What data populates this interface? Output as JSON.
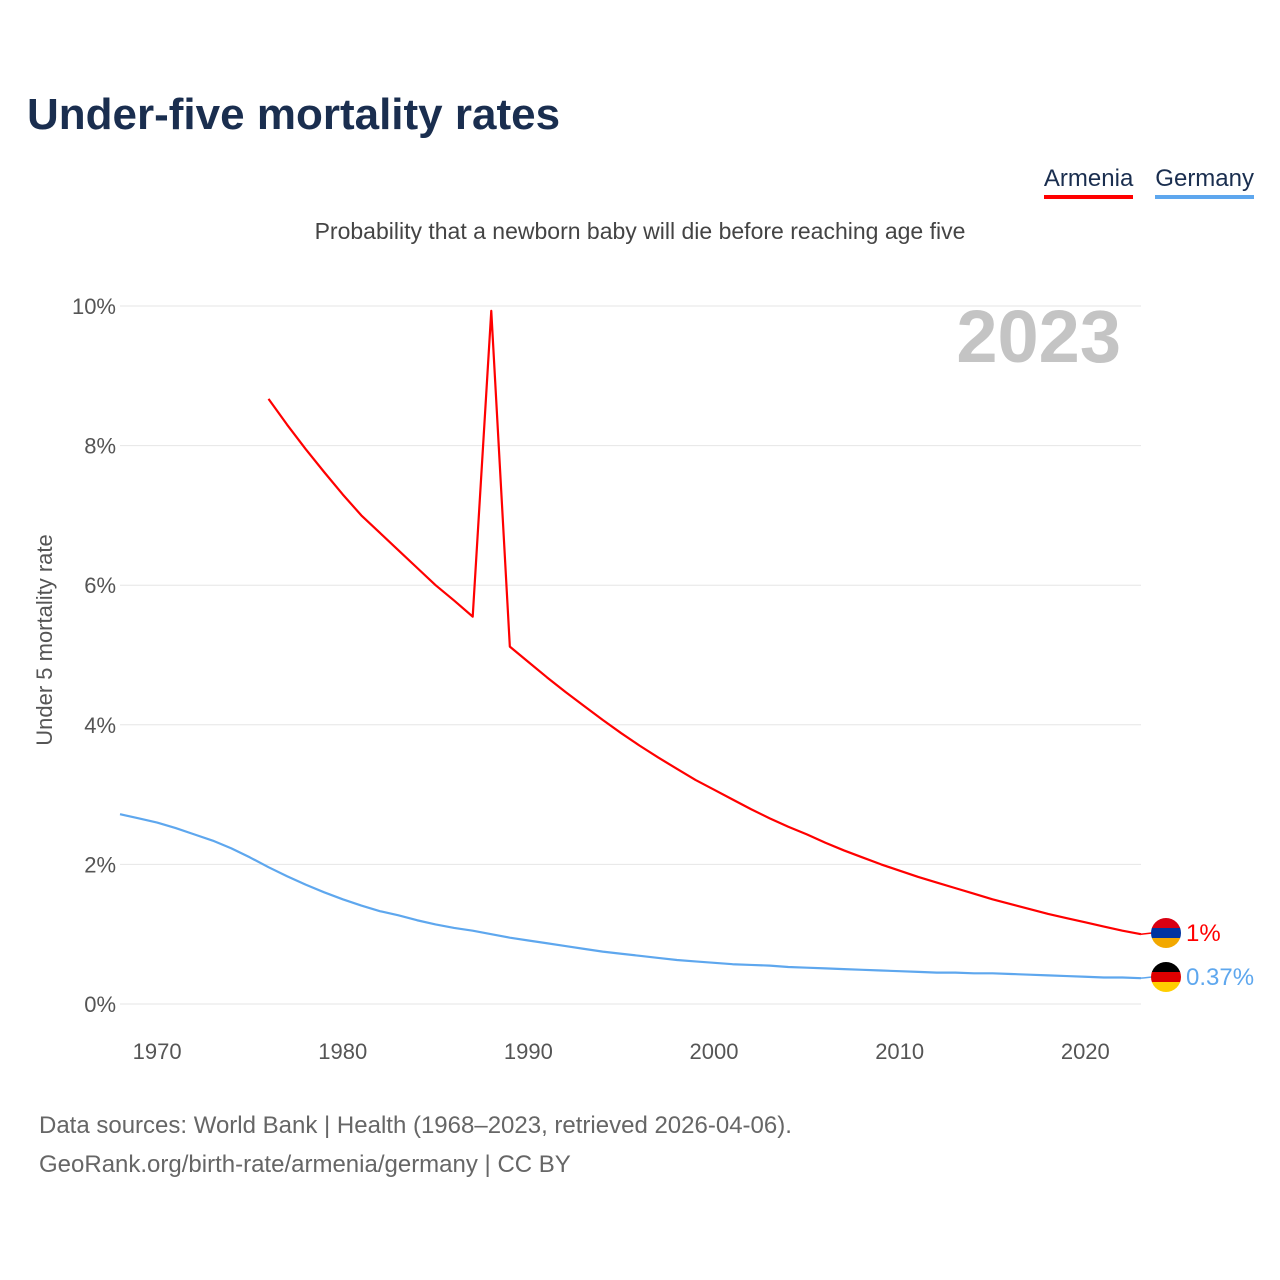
{
  "title": "Under-five mortality rates",
  "subtitle": "Probability that a newborn baby will die before reaching age five",
  "source_line1": "Data sources: World Bank | Health (1968–2023, retrieved 2026-04-06).",
  "source_line2": "GeoRank.org/birth-rate/armenia/germany | CC BY",
  "chart_data": {
    "type": "line",
    "title": "Under-five mortality rates",
    "ylabel": "Under 5 mortality rate",
    "xlabel": "",
    "year_label": "2023",
    "xlim": [
      1968,
      2023
    ],
    "ylim": [
      0,
      10
    ],
    "xticks": [
      "1970",
      "1980",
      "1990",
      "2000",
      "2010",
      "2020"
    ],
    "xtick_values": [
      1970,
      1980,
      1990,
      2000,
      2010,
      2020
    ],
    "yticks": [
      "0%",
      "2%",
      "4%",
      "6%",
      "8%",
      "10%"
    ],
    "ytick_values": [
      0,
      2,
      4,
      6,
      8,
      10
    ],
    "grid": true,
    "legend_position": "top-right",
    "series": [
      {
        "name": "Armenia",
        "color": "#ff0000",
        "end_label": "1%",
        "start": 1976,
        "values": [
          8.67,
          8.3,
          7.95,
          7.62,
          7.3,
          7.0,
          6.75,
          6.5,
          6.25,
          6.0,
          5.78,
          5.55,
          9.93,
          5.12,
          4.9,
          4.68,
          4.47,
          4.27,
          4.07,
          3.88,
          3.7,
          3.53,
          3.37,
          3.21,
          3.07,
          2.93,
          2.79,
          2.66,
          2.54,
          2.43,
          2.31,
          2.2,
          2.1,
          2.0,
          1.91,
          1.82,
          1.74,
          1.66,
          1.58,
          1.5,
          1.43,
          1.36,
          1.29,
          1.23,
          1.17,
          1.11,
          1.05,
          1.0
        ]
      },
      {
        "name": "Germany",
        "color": "#5ea7ee",
        "end_label": "0.37%",
        "start": 1968,
        "values": [
          2.72,
          2.66,
          2.6,
          2.52,
          2.43,
          2.34,
          2.23,
          2.1,
          1.96,
          1.83,
          1.71,
          1.6,
          1.5,
          1.41,
          1.33,
          1.27,
          1.2,
          1.14,
          1.09,
          1.05,
          1.0,
          0.95,
          0.91,
          0.87,
          0.83,
          0.79,
          0.75,
          0.72,
          0.69,
          0.66,
          0.63,
          0.61,
          0.59,
          0.57,
          0.56,
          0.55,
          0.53,
          0.52,
          0.51,
          0.5,
          0.49,
          0.48,
          0.47,
          0.46,
          0.45,
          0.45,
          0.44,
          0.44,
          0.43,
          0.42,
          0.41,
          0.4,
          0.39,
          0.38,
          0.38,
          0.37
        ]
      }
    ]
  }
}
